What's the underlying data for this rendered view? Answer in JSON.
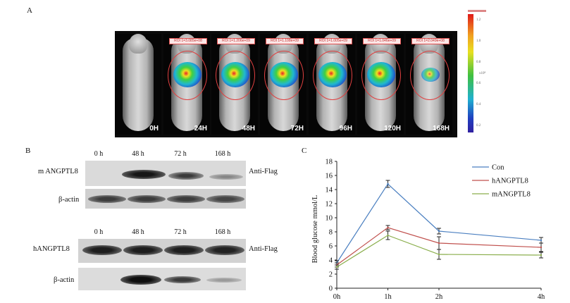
{
  "panel_a": {
    "letter": "A",
    "mice": [
      {
        "time": "0H",
        "roi": ""
      },
      {
        "time": "24H",
        "roi": "ROI 1=3.085e+08"
      },
      {
        "time": "48H",
        "roi": "ROI 1=1.206e+09"
      },
      {
        "time": "72H",
        "roi": "ROI 1=1.108e+09"
      },
      {
        "time": "96H",
        "roi": "ROI 1=1.005e+09"
      },
      {
        "time": "120H",
        "roi": "ROI 1=1.046e+09"
      },
      {
        "time": "168H",
        "roi": "ROI 1=2.049e+08"
      }
    ],
    "scale_unit": "x10⁸",
    "scale_ticks": [
      "1.2",
      "1.0",
      "0.8",
      "0.6",
      "0.4",
      "0.2"
    ]
  },
  "panel_b": {
    "letter": "B",
    "top": {
      "lanes": [
        "0 h",
        "48 h",
        "72 h",
        "168 h"
      ],
      "row1_label": "m ANGPTL8",
      "row1_right": "Anti-Flag",
      "row2_label": "β-actin"
    },
    "bottom": {
      "lanes": [
        "0 h",
        "48 h",
        "72 h",
        "168 h"
      ],
      "row1_label": "hANGPTL8",
      "row1_right": "Anti-Flag",
      "row2_label": "β-actin"
    }
  },
  "panel_c": {
    "letter": "C"
  },
  "chart_data": {
    "type": "line",
    "categories": [
      "0h",
      "1h",
      "2h",
      "4h"
    ],
    "ylabel": "Blood glucose mmol/L",
    "xlabel": "",
    "ylim": [
      0,
      18
    ],
    "yticks": [
      0,
      2,
      4,
      6,
      8,
      10,
      12,
      14,
      16,
      18
    ],
    "legend_position": "top-right",
    "series": [
      {
        "name": "Con",
        "color": "#4a7fc0",
        "values": [
          3.6,
          14.8,
          8.1,
          6.8
        ],
        "errors": [
          0.3,
          0.5,
          0.4,
          0.4
        ]
      },
      {
        "name": "hANGPTL8",
        "color": "#c0504d",
        "values": [
          3.3,
          8.6,
          6.4,
          5.8
        ],
        "errors": [
          0.3,
          0.3,
          0.9,
          0.6
        ]
      },
      {
        "name": "mANGPTL8",
        "color": "#8aae4c",
        "values": [
          3.0,
          7.5,
          4.8,
          4.7
        ],
        "errors": [
          0.3,
          0.6,
          0.7,
          0.4
        ]
      }
    ]
  }
}
